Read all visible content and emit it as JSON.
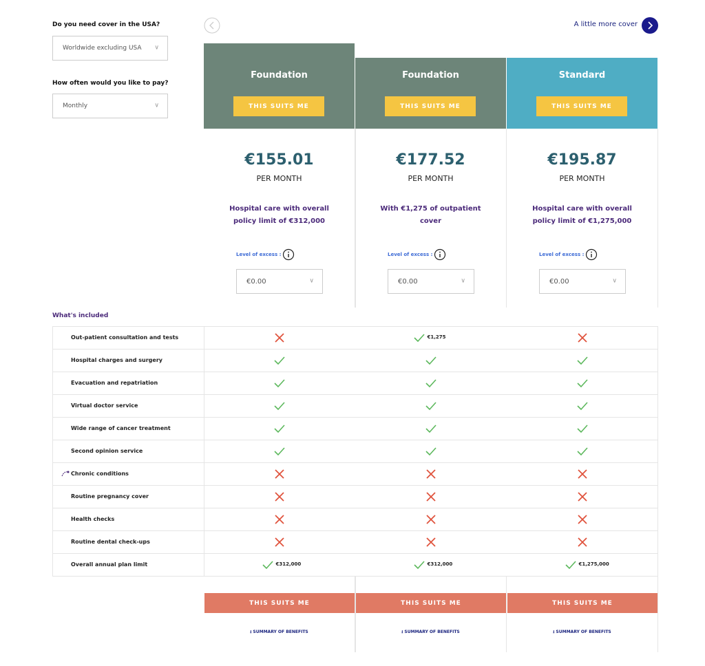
{
  "filters": [
    {
      "label": "Do you need cover in the USA?",
      "value": "Worldwide excluding USA"
    },
    {
      "label": "How often would you like to pay?",
      "value": "Monthly"
    }
  ],
  "nav": {
    "next_label": "A little more cover"
  },
  "plans": [
    {
      "name": "Foundation",
      "color": "#6d8579",
      "button": "THIS SUITS ME",
      "price": "€155.01",
      "period": "PER MONTH",
      "description": "Hospital care with overall policy limit of €312,000",
      "excess_label": "Level of excess :",
      "excess_value": "€0.00",
      "bottom_button": "THIS SUITS ME",
      "summary": "SUMMARY OF BENEFITS"
    },
    {
      "name": "Foundation",
      "color": "#6d8579",
      "button": "THIS SUITS ME",
      "price": "€177.52",
      "period": "PER MONTH",
      "description": "With €1,275 of outpatient cover",
      "excess_label": "Level of excess :",
      "excess_value": "€0.00",
      "bottom_button": "THIS SUITS ME",
      "summary": "SUMMARY OF BENEFITS"
    },
    {
      "name": "Standard",
      "color": "#4fadc4",
      "button": "THIS SUITS ME",
      "price": "€195.87",
      "period": "PER MONTH",
      "description": "Hospital care with overall policy limit of €1,275,000",
      "excess_label": "Level of excess :",
      "excess_value": "€0.00",
      "bottom_button": "THIS SUITS ME",
      "summary": "SUMMARY OF BENEFITS"
    }
  ],
  "included_title": "What's included",
  "features": [
    {
      "name": "Out-patient consultation and tests",
      "cells": [
        {
          "included": false
        },
        {
          "included": true,
          "note": "€1,275"
        },
        {
          "included": false
        }
      ]
    },
    {
      "name": "Hospital charges and surgery",
      "cells": [
        {
          "included": true
        },
        {
          "included": true
        },
        {
          "included": true
        }
      ]
    },
    {
      "name": "Evacuation and repatriation",
      "cells": [
        {
          "included": true
        },
        {
          "included": true
        },
        {
          "included": true
        }
      ]
    },
    {
      "name": "Virtual doctor service",
      "cells": [
        {
          "included": true
        },
        {
          "included": true
        },
        {
          "included": true
        }
      ]
    },
    {
      "name": "Wide range of cancer treatment",
      "cells": [
        {
          "included": true
        },
        {
          "included": true
        },
        {
          "included": true
        }
      ]
    },
    {
      "name": "Second opinion service",
      "cells": [
        {
          "included": true
        },
        {
          "included": true
        },
        {
          "included": true
        }
      ]
    },
    {
      "name": "Chronic conditions",
      "icon": true,
      "cells": [
        {
          "included": false
        },
        {
          "included": false
        },
        {
          "included": false
        }
      ]
    },
    {
      "name": "Routine pregnancy cover",
      "cells": [
        {
          "included": false
        },
        {
          "included": false
        },
        {
          "included": false
        }
      ]
    },
    {
      "name": "Health checks",
      "cells": [
        {
          "included": false
        },
        {
          "included": false
        },
        {
          "included": false
        }
      ]
    },
    {
      "name": "Routine dental check-ups",
      "cells": [
        {
          "included": false
        },
        {
          "included": false
        },
        {
          "included": false
        }
      ]
    },
    {
      "name": "Overall annual plan limit",
      "cells": [
        {
          "included": true,
          "note": "€312,000"
        },
        {
          "included": true,
          "note": "€312,000"
        },
        {
          "included": true,
          "note": "€1,275,000"
        }
      ]
    }
  ]
}
